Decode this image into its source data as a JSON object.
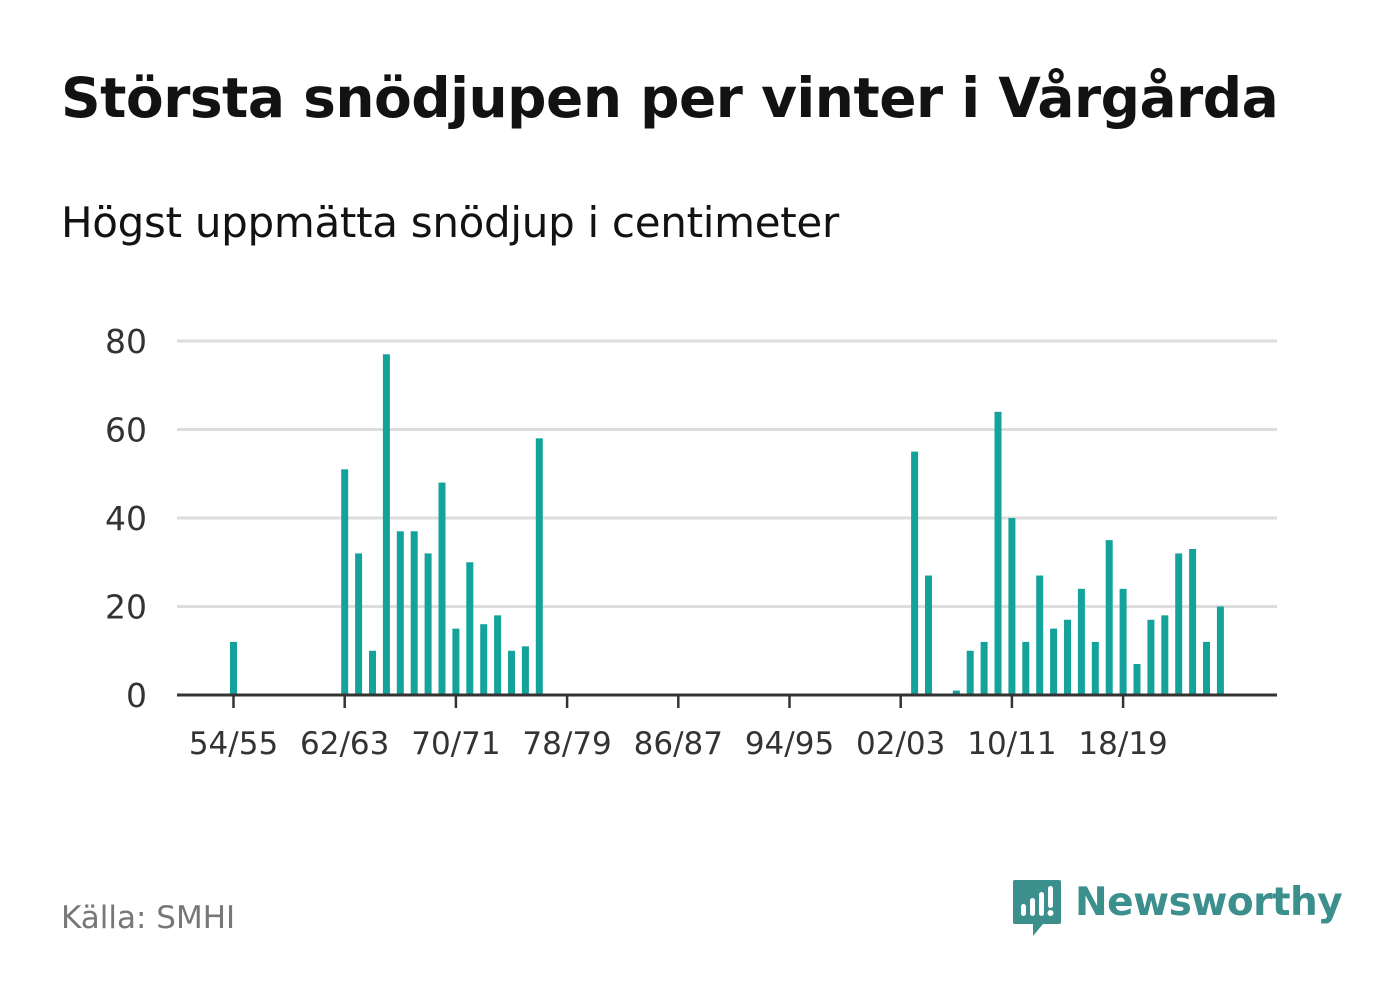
{
  "title": "Största snödjupen per vinter i Vårgårda",
  "subtitle": "Högst uppmätta snödjup i centimeter",
  "source": "Källa: SMHI",
  "brand": {
    "name": "Newsworthy",
    "icon": "newsworthy-logo-icon"
  },
  "colors": {
    "bar": "#13a39b",
    "grid": "#dddddd",
    "axis": "#333333",
    "brand": "#3b8f8c"
  },
  "chart_data": {
    "type": "bar",
    "title": "Största snödjupen per vinter i Vårgårda",
    "subtitle": "Högst uppmätta snödjup i centimeter",
    "xlabel": "",
    "ylabel": "",
    "ylim": [
      0,
      80
    ],
    "yticks": [
      0,
      20,
      40,
      60,
      80
    ],
    "grid": true,
    "xtick_labels": [
      "54/55",
      "62/63",
      "70/71",
      "78/79",
      "86/87",
      "94/95",
      "02/03",
      "10/11",
      "18/19"
    ],
    "categories": [
      "54/55",
      "55/56",
      "56/57",
      "57/58",
      "58/59",
      "59/60",
      "60/61",
      "61/62",
      "62/63",
      "63/64",
      "64/65",
      "65/66",
      "66/67",
      "67/68",
      "68/69",
      "69/70",
      "70/71",
      "71/72",
      "72/73",
      "73/74",
      "74/75",
      "75/76",
      "76/77",
      "77/78",
      "78/79",
      "79/80",
      "80/81",
      "81/82",
      "82/83",
      "83/84",
      "84/85",
      "85/86",
      "86/87",
      "87/88",
      "88/89",
      "89/90",
      "90/91",
      "91/92",
      "92/93",
      "93/94",
      "94/95",
      "95/96",
      "96/97",
      "97/98",
      "98/99",
      "99/00",
      "00/01",
      "01/02",
      "02/03",
      "03/04",
      "04/05",
      "05/06",
      "06/07",
      "07/08",
      "08/09",
      "09/10",
      "10/11",
      "11/12",
      "12/13",
      "13/14",
      "14/15",
      "15/16",
      "16/17",
      "17/18",
      "18/19",
      "19/20",
      "20/21",
      "21/22",
      "22/23",
      "23/24",
      "24/25",
      "25/26",
      "26/27"
    ],
    "values": [
      12,
      null,
      null,
      null,
      null,
      null,
      null,
      null,
      51,
      32,
      10,
      77,
      37,
      37,
      32,
      48,
      15,
      30,
      16,
      18,
      10,
      11,
      58,
      null,
      null,
      null,
      null,
      null,
      null,
      null,
      null,
      null,
      null,
      null,
      null,
      null,
      null,
      null,
      null,
      null,
      null,
      null,
      null,
      null,
      null,
      null,
      null,
      null,
      null,
      55,
      27,
      null,
      1,
      10,
      12,
      64,
      40,
      12,
      27,
      15,
      17,
      24,
      12,
      35,
      24,
      7,
      17,
      18,
      32,
      33,
      12,
      20,
      null
    ]
  }
}
